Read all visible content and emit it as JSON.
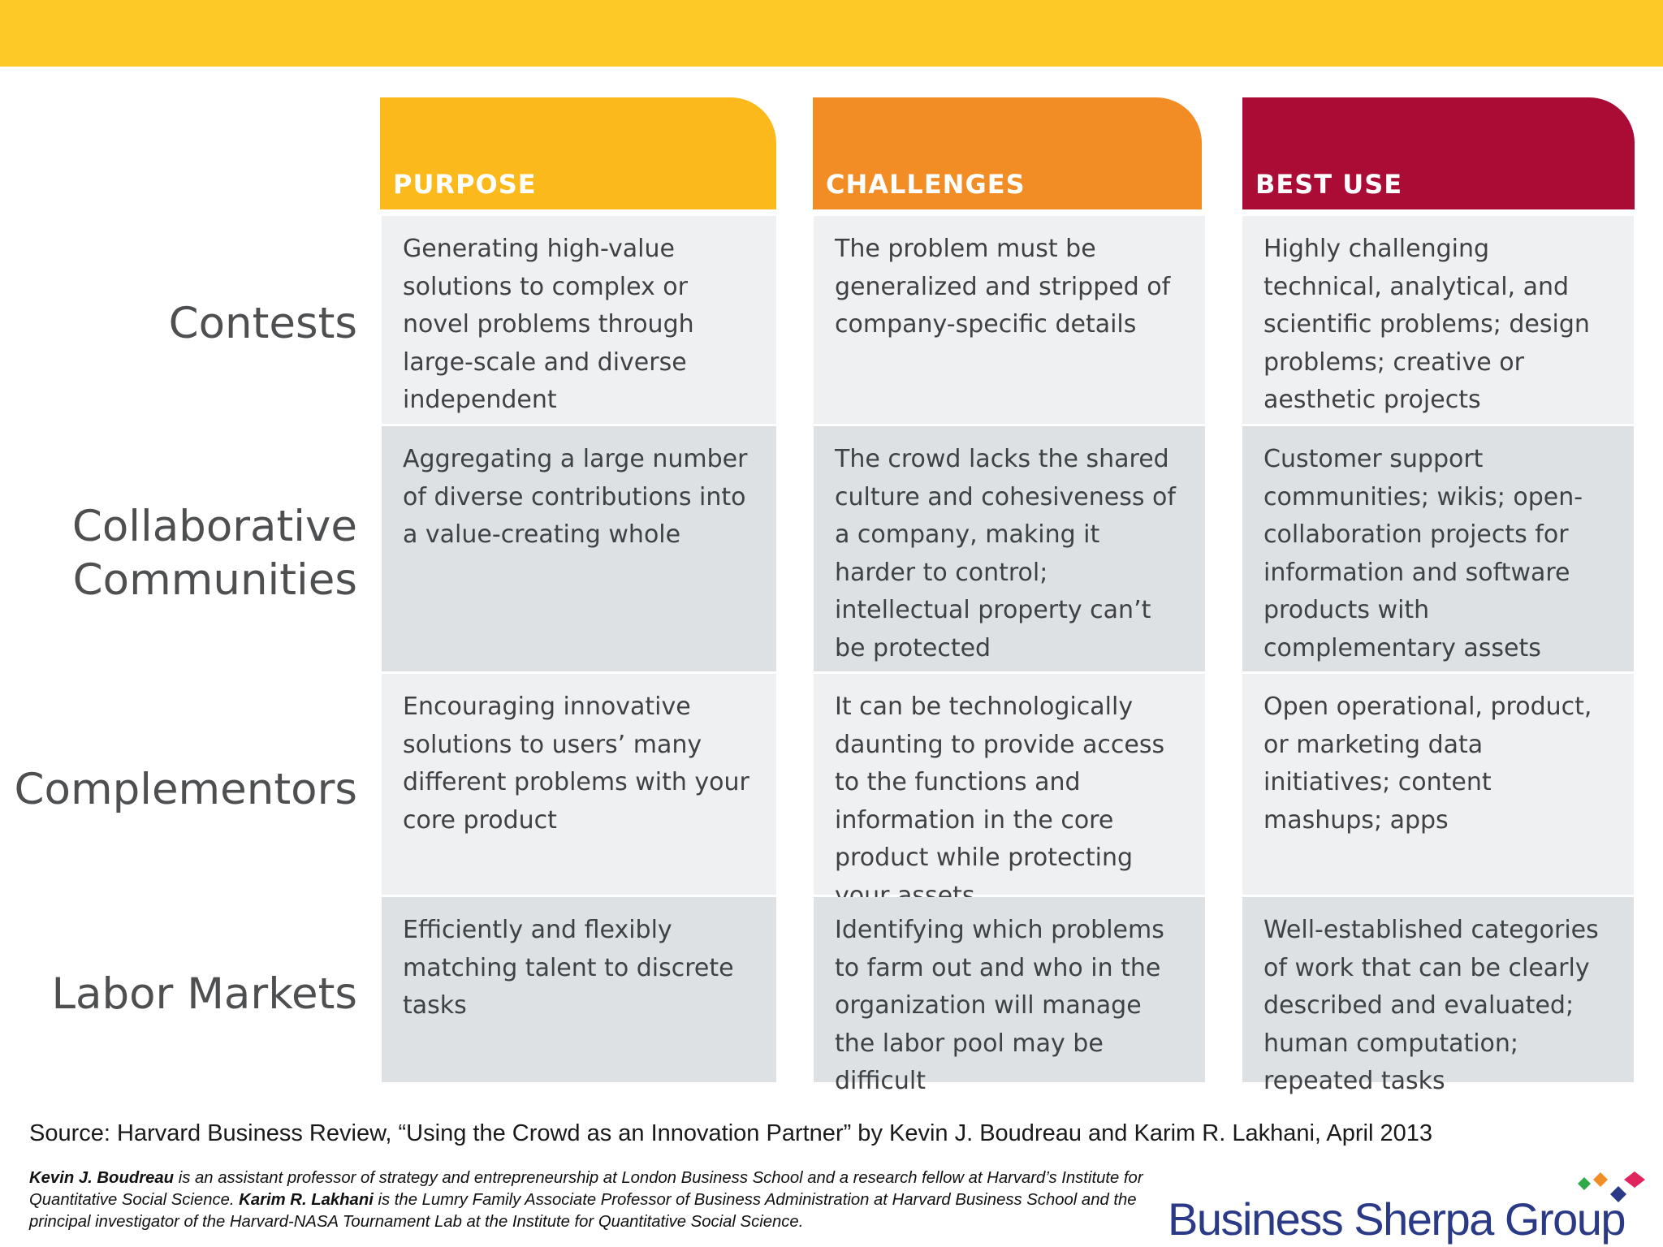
{
  "columns": {
    "purpose": "PURPOSE",
    "challenges": "CHALLENGES",
    "best_use": "BEST USE"
  },
  "colors": {
    "purpose": "#fbb91b",
    "challenges": "#f28c25",
    "best_use": "#aa0c35",
    "top_bar": "#fdc927"
  },
  "rows": [
    {
      "label": "Contests",
      "purpose": "Generating high-value solutions to complex or novel problems through large-scale and diverse independent experimentation",
      "challenges": "The problem must be generalized and stripped of company-specific details",
      "best_use": "Highly challenging technical, analytical, and scientific problems; design problems; creative or aesthetic projects"
    },
    {
      "label": "Collaborative Communities",
      "purpose": "Aggregating a large number of diverse contributions into a value-creating whole",
      "challenges": "The crowd lacks the shared culture and cohesiveness of a company, making it harder to control; intellectual property can’t be protected",
      "best_use": "Customer support communities; wikis; open-collaboration projects for information and software products with complementary assets inside the firm; FAQs"
    },
    {
      "label": "Complementors",
      "purpose": "Encouraging innovative solutions to users’ many different problems with your core product",
      "challenges": "It can be technologically daunting to provide access to the functions and information in the core product while protecting your assets",
      "best_use": "Open operational, product, or marketing data initiatives; content mashups; apps"
    },
    {
      "label": "Labor Markets",
      "purpose": "Efficiently and flexibly matching talent to discrete tasks",
      "challenges": "Identifying which problems to farm out and who in the organization will manage the labor pool may be difficult",
      "best_use": "Well-established categories of work that can be clearly described and evaluated; human computation; repeated tasks"
    }
  ],
  "source": "Source:  Harvard Business Review, “Using the Crowd as an Innovation Partner” by Kevin J. Boudreau and Karim R. Lakhani, April 2013",
  "bio": {
    "name1": "Kevin J. Boudreau",
    "text1": " is an assistant professor of strategy and entrepreneurship at London Business School and a research fellow at Harvard’s Institute for Quantitative Social Science. ",
    "name2": "Karim R. Lakhani",
    "text2": " is the Lumry Family Associate Professor of Business Administration at Harvard Business School and the principal investigator of the Harvard-NASA Tournament Lab at the Institute for Quantitative Social Science."
  },
  "logo": {
    "text": "Business Sherpa Group",
    "colors": [
      "#2eaa48",
      "#f28c25",
      "#2b3a87",
      "#e0245e"
    ]
  }
}
